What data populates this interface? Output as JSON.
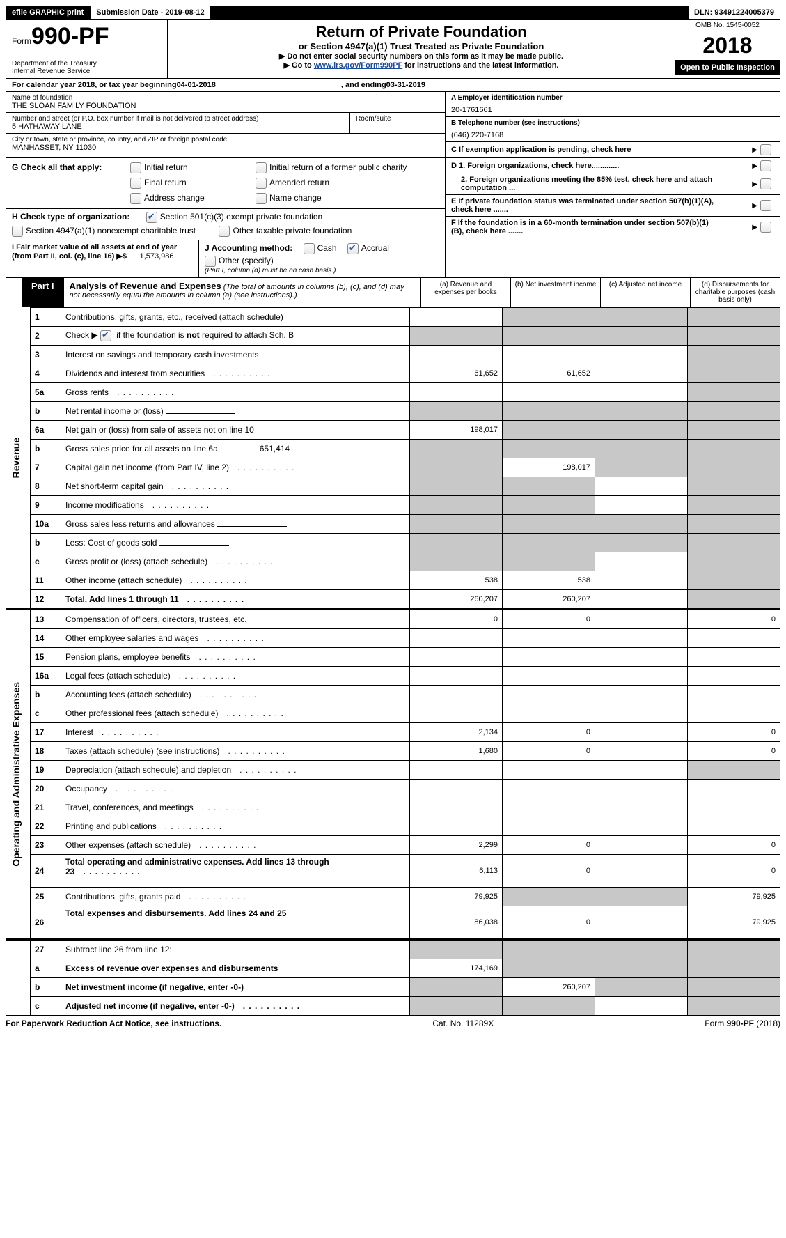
{
  "topbar": {
    "efile": "efile GRAPHIC print",
    "submission_label": "Submission Date - 2019-08-12",
    "dln": "DLN: 93491224005379"
  },
  "header": {
    "form_word": "Form",
    "form_no": "990-PF",
    "dept1": "Department of the Treasury",
    "dept2": "Internal Revenue Service",
    "title": "Return of Private Foundation",
    "subtitle": "or Section 4947(a)(1) Trust Treated as Private Foundation",
    "note1": "▶ Do not enter social security numbers on this form as it may be made public.",
    "note2_pre": "▶ Go to ",
    "note2_link": "www.irs.gov/Form990PF",
    "note2_post": " for instructions and the latest information.",
    "omb": "OMB No. 1545-0052",
    "year": "2018",
    "open": "Open to Public Inspection"
  },
  "period": {
    "text_pre": "For calendar year 2018, or tax year beginning ",
    "begin": "04-01-2018",
    "text_mid": " , and ending ",
    "end": "03-31-2019"
  },
  "entity": {
    "name_label": "Name of foundation",
    "name": "THE SLOAN FAMILY FOUNDATION",
    "addr_label": "Number and street (or P.O. box number if mail is not delivered to street address)",
    "addr": "5 HATHAWAY LANE",
    "room_label": "Room/suite",
    "city_label": "City or town, state or province, country, and ZIP or foreign postal code",
    "city": "MANHASSET, NY  11030",
    "ein_label": "A Employer identification number",
    "ein": "20-1761661",
    "phone_label": "B Telephone number (see instructions)",
    "phone": "(646) 220-7168",
    "c_label": "C  If exemption application is pending, check here"
  },
  "checks": {
    "g_label": "G Check all that apply:",
    "g1": "Initial return",
    "g2": "Initial return of a former public charity",
    "g3": "Final return",
    "g4": "Amended return",
    "g5": "Address change",
    "g6": "Name change",
    "h_label": "H Check type of organization:",
    "h1": "Section 501(c)(3) exempt private foundation",
    "h2": "Section 4947(a)(1) nonexempt charitable trust",
    "h3": "Other taxable private foundation",
    "i_label": "I Fair market value of all assets at end of year (from Part II, col. (c), line 16) ▶$",
    "i_val": "1,573,986",
    "j_label": "J Accounting method:",
    "j1": "Cash",
    "j2": "Accrual",
    "j3": "Other (specify)",
    "j_note": "(Part I, column (d) must be on cash basis.)",
    "d1": "D 1. Foreign organizations, check here.............",
    "d2": "2. Foreign organizations meeting the 85% test, check here and attach computation ...",
    "e": "E  If private foundation status was terminated under section 507(b)(1)(A), check here .......",
    "f": "F  If the foundation is in a 60-month termination under section 507(b)(1)(B), check here ......."
  },
  "part1": {
    "tag": "Part I",
    "title": "Analysis of Revenue and Expenses",
    "title_note": " (The total of amounts in columns (b), (c), and (d) may not necessarily equal the amounts in column (a) (see instructions).)",
    "cols": {
      "a": "(a)    Revenue and expenses per books",
      "b": "(b)    Net investment income",
      "c": "(c)    Adjusted net income",
      "d": "(d)    Disbursements for charitable purposes (cash basis only)"
    }
  },
  "sections": {
    "revenue": "Revenue",
    "expenses": "Operating and Administrative Expenses"
  },
  "rows": [
    {
      "n": "1",
      "d": "Contributions, gifts, grants, etc., received (attach schedule)",
      "a": "",
      "b": "g",
      "c": "g",
      "dv": "g"
    },
    {
      "n": "2",
      "d": "Check ▶ [x] if the foundation is not required to attach Sch. B",
      "a": "g",
      "b": "g",
      "c": "g",
      "dv": "g",
      "special": "check"
    },
    {
      "n": "3",
      "d": "Interest on savings and temporary cash investments",
      "a": "",
      "b": "",
      "c": "",
      "dv": "g"
    },
    {
      "n": "4",
      "d": "Dividends and interest from securities",
      "a": "61,652",
      "b": "61,652",
      "c": "",
      "dv": "g",
      "dots": true
    },
    {
      "n": "5a",
      "d": "Gross rents",
      "a": "",
      "b": "",
      "c": "",
      "dv": "g",
      "dots": true
    },
    {
      "n": "b",
      "d": "Net rental income or (loss)",
      "a": "g",
      "b": "g",
      "c": "g",
      "dv": "g",
      "inline": true
    },
    {
      "n": "6a",
      "d": "Net gain or (loss) from sale of assets not on line 10",
      "a": "198,017",
      "b": "g",
      "c": "g",
      "dv": "g"
    },
    {
      "n": "b",
      "d": "Gross sales price for all assets on line 6a",
      "a": "g",
      "b": "g",
      "c": "g",
      "dv": "g",
      "inline": true,
      "inlineval": "651,414"
    },
    {
      "n": "7",
      "d": "Capital gain net income (from Part IV, line 2)",
      "a": "g",
      "b": "198,017",
      "c": "g",
      "dv": "g",
      "dots": true
    },
    {
      "n": "8",
      "d": "Net short-term capital gain",
      "a": "g",
      "b": "g",
      "c": "",
      "dv": "g",
      "dots": true
    },
    {
      "n": "9",
      "d": "Income modifications",
      "a": "g",
      "b": "g",
      "c": "",
      "dv": "g",
      "dots": true
    },
    {
      "n": "10a",
      "d": "Gross sales less returns and allowances",
      "a": "g",
      "b": "g",
      "c": "g",
      "dv": "g",
      "inline": true
    },
    {
      "n": "b",
      "d": "Less: Cost of goods sold",
      "a": "g",
      "b": "g",
      "c": "g",
      "dv": "g",
      "inline": true,
      "dots": true
    },
    {
      "n": "c",
      "d": "Gross profit or (loss) (attach schedule)",
      "a": "g",
      "b": "g",
      "c": "",
      "dv": "g",
      "dots": true
    },
    {
      "n": "11",
      "d": "Other income (attach schedule)",
      "a": "538",
      "b": "538",
      "c": "",
      "dv": "g",
      "dots": true
    },
    {
      "n": "12",
      "d": "Total. Add lines 1 through 11",
      "a": "260,207",
      "b": "260,207",
      "c": "",
      "dv": "g",
      "bold": true,
      "dots": true
    }
  ],
  "exp_rows": [
    {
      "n": "13",
      "d": "Compensation of officers, directors, trustees, etc.",
      "a": "0",
      "b": "0",
      "c": "",
      "dv": "0"
    },
    {
      "n": "14",
      "d": "Other employee salaries and wages",
      "a": "",
      "b": "",
      "c": "",
      "dv": "",
      "dots": true
    },
    {
      "n": "15",
      "d": "Pension plans, employee benefits",
      "a": "",
      "b": "",
      "c": "",
      "dv": "",
      "dots": true
    },
    {
      "n": "16a",
      "d": "Legal fees (attach schedule)",
      "a": "",
      "b": "",
      "c": "",
      "dv": "",
      "dots": true
    },
    {
      "n": "b",
      "d": "Accounting fees (attach schedule)",
      "a": "",
      "b": "",
      "c": "",
      "dv": "",
      "dots": true
    },
    {
      "n": "c",
      "d": "Other professional fees (attach schedule)",
      "a": "",
      "b": "",
      "c": "",
      "dv": "",
      "dots": true
    },
    {
      "n": "17",
      "d": "Interest",
      "a": "2,134",
      "b": "0",
      "c": "",
      "dv": "0",
      "dots": true
    },
    {
      "n": "18",
      "d": "Taxes (attach schedule) (see instructions)",
      "a": "1,680",
      "b": "0",
      "c": "",
      "dv": "0",
      "dots": true
    },
    {
      "n": "19",
      "d": "Depreciation (attach schedule) and depletion",
      "a": "",
      "b": "",
      "c": "",
      "dv": "g",
      "dots": true
    },
    {
      "n": "20",
      "d": "Occupancy",
      "a": "",
      "b": "",
      "c": "",
      "dv": "",
      "dots": true
    },
    {
      "n": "21",
      "d": "Travel, conferences, and meetings",
      "a": "",
      "b": "",
      "c": "",
      "dv": "",
      "dots": true
    },
    {
      "n": "22",
      "d": "Printing and publications",
      "a": "",
      "b": "",
      "c": "",
      "dv": "",
      "dots": true
    },
    {
      "n": "23",
      "d": "Other expenses (attach schedule)",
      "a": "2,299",
      "b": "0",
      "c": "",
      "dv": "0",
      "dots": true
    },
    {
      "n": "24",
      "d": "Total operating and administrative expenses. Add lines 13 through 23",
      "a": "6,113",
      "b": "0",
      "c": "",
      "dv": "0",
      "bold": true,
      "dots": true,
      "tall": true
    },
    {
      "n": "25",
      "d": "Contributions, gifts, grants paid",
      "a": "79,925",
      "b": "g",
      "c": "g",
      "dv": "79,925",
      "dots": true
    },
    {
      "n": "26",
      "d": "Total expenses and disbursements. Add lines 24 and 25",
      "a": "86,038",
      "b": "0",
      "c": "",
      "dv": "79,925",
      "bold": true,
      "tall": true
    }
  ],
  "bottom_rows": [
    {
      "n": "27",
      "d": "Subtract line 26 from line 12:",
      "a": "g",
      "b": "g",
      "c": "g",
      "dv": "g"
    },
    {
      "n": "a",
      "d": "Excess of revenue over expenses and disbursements",
      "a": "174,169",
      "b": "g",
      "c": "g",
      "dv": "g",
      "bold": true
    },
    {
      "n": "b",
      "d": "Net investment income (if negative, enter -0-)",
      "a": "g",
      "b": "260,207",
      "c": "g",
      "dv": "g",
      "bold": true
    },
    {
      "n": "c",
      "d": "Adjusted net income (if negative, enter -0-)",
      "a": "g",
      "b": "g",
      "c": "",
      "dv": "g",
      "bold": true,
      "dots": true
    }
  ],
  "footer": {
    "left": "For Paperwork Reduction Act Notice, see instructions.",
    "mid": "Cat. No. 11289X",
    "right": "Form 990-PF (2018)"
  }
}
